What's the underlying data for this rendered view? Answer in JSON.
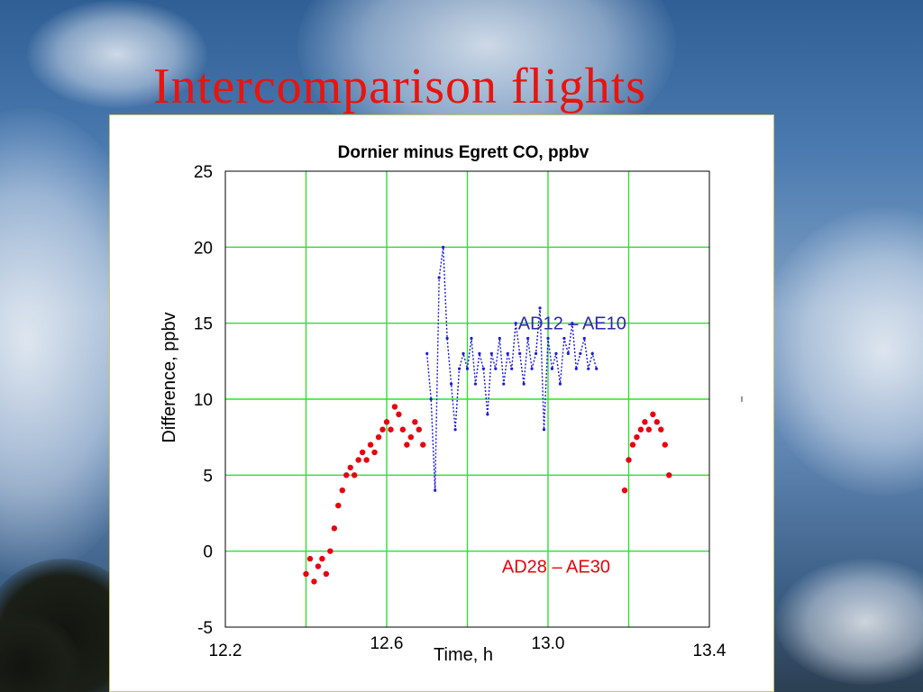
{
  "slide": {
    "title": "Intercomparison flights"
  },
  "colors": {
    "title": "#e8140e",
    "grid": "#33dd33",
    "series_red": "#e8000e",
    "series_blue": "#1a1ae0",
    "annotation_red": "#e8000e",
    "annotation_blue": "#2a2aa8"
  },
  "chart_data": {
    "type": "scatter",
    "title": "Dornier minus Egrett CO, ppbv",
    "xlabel": "Time, h",
    "ylabel": "Difference, ppbv",
    "xlim": [
      12.2,
      13.4
    ],
    "ylim": [
      -5,
      25
    ],
    "xticks": [
      "12.2",
      "12.6",
      "13.0",
      "13.4"
    ],
    "yticks": [
      "25",
      "20",
      "15",
      "10",
      "5",
      "0",
      "-5"
    ],
    "grid": true,
    "annotations": [
      {
        "text": "AD12 – AE10",
        "x": 13.06,
        "y": 15,
        "series": "AD12 – AE10"
      },
      {
        "text": "AD28 – AE30",
        "x": 13.02,
        "y": -1,
        "series": "AD28 – AE30"
      }
    ],
    "series": [
      {
        "name": "AD28 – AE30",
        "style": "dots",
        "x": [
          12.4,
          12.41,
          12.42,
          12.43,
          12.44,
          12.45,
          12.46,
          12.47,
          12.48,
          12.49,
          12.5,
          12.51,
          12.52,
          12.53,
          12.54,
          12.55,
          12.56,
          12.57,
          12.58,
          12.59,
          12.6,
          12.61,
          12.62,
          12.63,
          12.64,
          12.65,
          12.66,
          12.67,
          12.68,
          12.69,
          13.19,
          13.2,
          13.21,
          13.22,
          13.23,
          13.24,
          13.25,
          13.26,
          13.27,
          13.28,
          13.29,
          13.3
        ],
        "y": [
          -1.5,
          -0.5,
          -2.0,
          -1.0,
          -0.5,
          -1.5,
          0.0,
          1.5,
          3.0,
          4.0,
          5.0,
          5.5,
          5.0,
          6.0,
          6.5,
          6.0,
          7.0,
          6.5,
          7.5,
          8.0,
          8.5,
          8.0,
          9.5,
          9.0,
          8.0,
          7.0,
          7.5,
          8.5,
          8.0,
          7.0,
          4.0,
          6.0,
          7.0,
          7.5,
          8.0,
          8.5,
          8.0,
          9.0,
          8.5,
          8.0,
          7.0,
          5.0
        ]
      },
      {
        "name": "AD12 – AE10",
        "style": "dotted-line",
        "x": [
          12.7,
          12.71,
          12.72,
          12.73,
          12.74,
          12.75,
          12.76,
          12.77,
          12.78,
          12.79,
          12.8,
          12.81,
          12.82,
          12.83,
          12.84,
          12.85,
          12.86,
          12.87,
          12.88,
          12.89,
          12.9,
          12.91,
          12.92,
          12.93,
          12.94,
          12.95,
          12.96,
          12.97,
          12.98,
          12.99,
          13.0,
          13.01,
          13.02,
          13.03,
          13.04,
          13.05,
          13.06,
          13.07,
          13.08,
          13.09,
          13.1,
          13.11,
          13.12
        ],
        "y": [
          13,
          10,
          4,
          18,
          20,
          14,
          11,
          8,
          12,
          13,
          12,
          14,
          11,
          13,
          12,
          9,
          13,
          12,
          14,
          11,
          13,
          12,
          15,
          13,
          11,
          14,
          12,
          13,
          16,
          8,
          14,
          12,
          13,
          11,
          14,
          13,
          15,
          12,
          13,
          14,
          12,
          13,
          12
        ]
      }
    ]
  }
}
